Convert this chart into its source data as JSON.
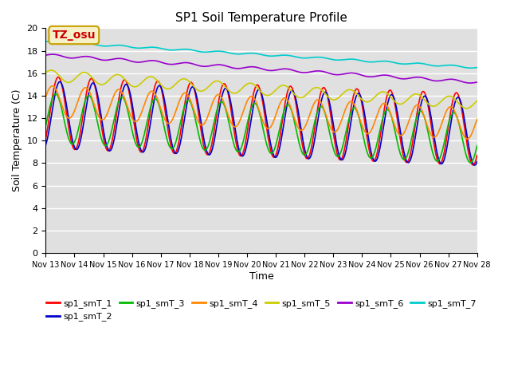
{
  "title": "SP1 Soil Temperature Profile",
  "xlabel": "Time",
  "ylabel": "Soil Temperature (C)",
  "ylim": [
    0,
    20
  ],
  "yticks": [
    0,
    2,
    4,
    6,
    8,
    10,
    12,
    14,
    16,
    18,
    20
  ],
  "x_labels": [
    "Nov 13",
    "Nov 14",
    "Nov 15",
    "Nov 16",
    "Nov 17",
    "Nov 18",
    "Nov 19",
    "Nov 20",
    "Nov 21",
    "Nov 22",
    "Nov 23",
    "Nov 24",
    "Nov 25",
    "Nov 26",
    "Nov 27",
    "Nov 28"
  ],
  "background_color": "#e0e0e0",
  "annotation_text": "TZ_osu",
  "annotation_bg": "#f5f0c8",
  "annotation_border": "#c8a000",
  "annotation_text_color": "#cc0000",
  "series": {
    "sp1_smT_1": {
      "color": "#ff0000",
      "lw": 1.2
    },
    "sp1_smT_2": {
      "color": "#0000cc",
      "lw": 1.2
    },
    "sp1_smT_3": {
      "color": "#00bb00",
      "lw": 1.2
    },
    "sp1_smT_4": {
      "color": "#ff8800",
      "lw": 1.2
    },
    "sp1_smT_5": {
      "color": "#cccc00",
      "lw": 1.2
    },
    "sp1_smT_6": {
      "color": "#9900cc",
      "lw": 1.2
    },
    "sp1_smT_7": {
      "color": "#00cccc",
      "lw": 1.2
    }
  }
}
